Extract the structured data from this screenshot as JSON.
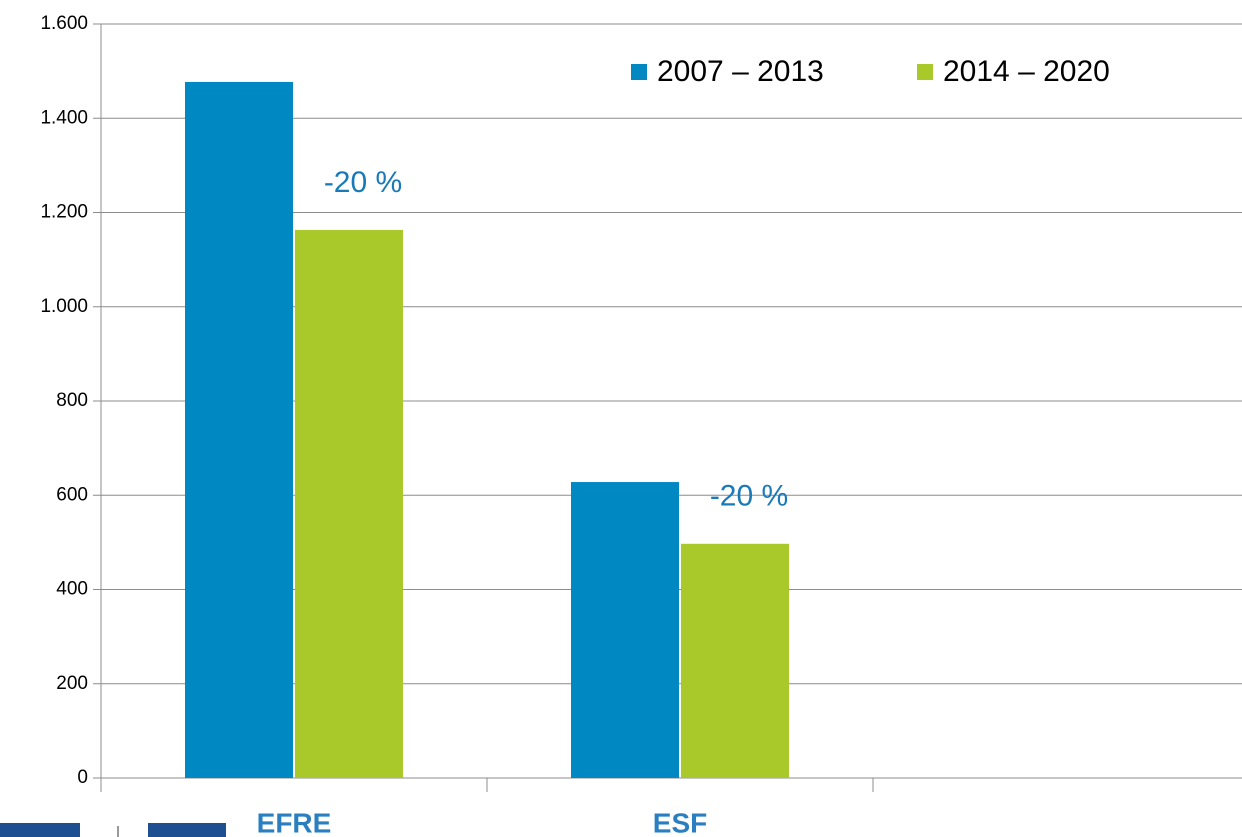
{
  "chart_data": {
    "type": "bar",
    "categories": [
      "EFRE",
      "ESF",
      null
    ],
    "series": [
      {
        "name": "2007 – 2013",
        "color": "#0088c2",
        "values": [
          1477,
          628,
          null
        ]
      },
      {
        "name": "2014 – 2020",
        "color": "#a9c92b",
        "values": [
          1163,
          497,
          null
        ]
      }
    ],
    "annotations": [
      "-20 %",
      "-20 %"
    ],
    "ylim": [
      0,
      1600
    ],
    "yticks": [
      0,
      {
        "value": 200,
        "label": "200"
      },
      {
        "value": 400,
        "label": "400"
      },
      {
        "value": 600,
        "label": "600"
      },
      {
        "value": 800,
        "label": "800"
      },
      {
        "value": 1000,
        "label": "1.000"
      },
      {
        "value": 1200,
        "label": "1.200"
      },
      {
        "value": 1400,
        "label": "1.400"
      },
      {
        "value": 1600,
        "label": "1.600"
      }
    ],
    "grid": true,
    "legend": "top-right"
  }
}
